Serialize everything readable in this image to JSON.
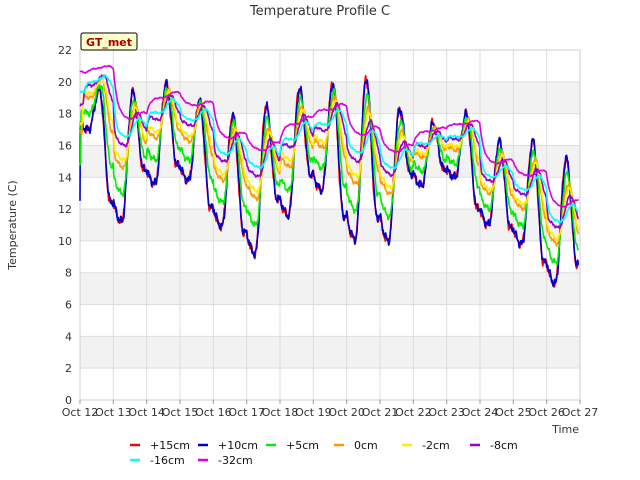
{
  "chart_data": {
    "type": "line",
    "title": "Temperature Profile C",
    "xlabel": "Time",
    "ylabel": "Temperature (C)",
    "ylim": [
      0,
      22
    ],
    "yticks": [
      0,
      2,
      4,
      6,
      8,
      10,
      12,
      14,
      16,
      18,
      20,
      22
    ],
    "xlim_days": [
      12,
      27
    ],
    "xticks": [
      {
        "day": 12,
        "label": "Oct 12"
      },
      {
        "day": 13,
        "label": "Oct 13"
      },
      {
        "day": 14,
        "label": "Oct 14"
      },
      {
        "day": 15,
        "label": "Oct 15"
      },
      {
        "day": 16,
        "label": "Oct 16"
      },
      {
        "day": 17,
        "label": "Oct 17"
      },
      {
        "day": 18,
        "label": "Oct 18"
      },
      {
        "day": 19,
        "label": "Oct 19"
      },
      {
        "day": 20,
        "label": "Oct 20"
      },
      {
        "day": 21,
        "label": "Oct 21"
      },
      {
        "day": 22,
        "label": "Oct 22"
      },
      {
        "day": 23,
        "label": "Oct 23"
      },
      {
        "day": 24,
        "label": "Oct 24"
      },
      {
        "day": 25,
        "label": "Oct 25"
      },
      {
        "day": 26,
        "label": "Oct 26"
      },
      {
        "day": 27,
        "label": "Oct 27"
      }
    ],
    "grid": true,
    "legend_position": "bottom",
    "badge": "GT_met",
    "daily_minima": [
      17.0,
      11.2,
      13.6,
      13.8,
      10.9,
      9.2,
      11.6,
      13.2,
      10.1,
      10.0,
      13.5,
      14.0,
      11.0,
      9.8,
      7.3
    ],
    "daily_maxima": [
      19.5,
      19.4,
      19.9,
      18.8,
      17.9,
      18.5,
      19.6,
      19.9,
      20.2,
      18.3,
      17.4,
      18.0,
      16.3,
      16.3,
      15.2
    ],
    "series": [
      {
        "name": "+15cm",
        "color": "#ff0000",
        "amp": 1.0,
        "lag": 0.0,
        "smooth": 0.0,
        "offset": 0.0
      },
      {
        "name": "+10cm",
        "color": "#0000cc",
        "amp": 1.0,
        "lag": 0.01,
        "smooth": 0.05,
        "offset": 0.1
      },
      {
        "name": "+5cm",
        "color": "#00ee00",
        "amp": 0.72,
        "lag": 0.03,
        "smooth": 0.3,
        "offset": 0.4
      },
      {
        "name": "0cm",
        "color": "#ff9900",
        "amp": 0.48,
        "lag": 0.06,
        "smooth": 0.55,
        "offset": 0.6
      },
      {
        "name": "-2cm",
        "color": "#ffee00",
        "amp": 0.4,
        "lag": 0.07,
        "smooth": 0.6,
        "offset": 0.5
      },
      {
        "name": "-8cm",
        "color": "#9900cc",
        "amp": 0.26,
        "lag": 0.1,
        "smooth": 0.75,
        "offset": 0.5
      },
      {
        "name": "-16cm",
        "color": "#00ffff",
        "amp": 0.15,
        "lag": 0.14,
        "smooth": 0.85,
        "offset": 0.3
      },
      {
        "name": "-32cm",
        "color": "#dd00dd",
        "amp": 0.07,
        "lag": 0.2,
        "smooth": 0.92,
        "offset": 0.9
      }
    ]
  }
}
